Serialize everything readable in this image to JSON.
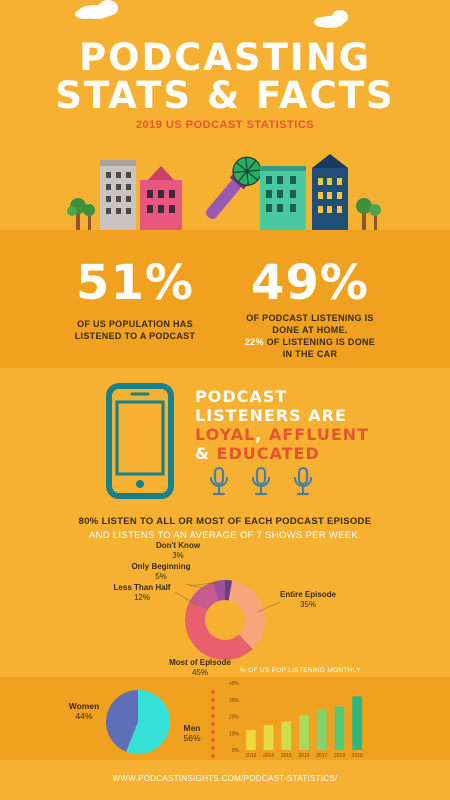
{
  "header": {
    "title_line1": "PODCASTING",
    "title_line2": "STATS & FACTS",
    "subtitle": "2019 US PODCAST STATISTICS"
  },
  "stats": {
    "stat1_value": "51%",
    "stat1_caption_line1": "OF US POPULATION HAS",
    "stat1_caption_line2": "LISTENED TO A PODCAST",
    "stat2_value": "49%",
    "stat2_caption_line1": "OF PODCAST LISTENING IS",
    "stat2_caption_line2": "DONE AT HOME.",
    "stat2_highlight": "22%",
    "stat2_caption_line3": " OF LISTENING IS DONE",
    "stat2_caption_line4": "IN THE CAR"
  },
  "listeners": {
    "line1": "PODCAST",
    "line2": "LISTENERS ARE",
    "loyal": "LOYAL",
    "comma": ",",
    "affluent": "AFFLUENT",
    "amp": "& ",
    "educated": "EDUCATED"
  },
  "episode_text": {
    "part1": "80% LISTEN TO ",
    "bold": "ALL OR MOST",
    "part2": " OF EACH PODCAST EPISODE",
    "line2": "AND LISTENS TO AN AVERAGE OF 7 SHOWS PER WEEK."
  },
  "chart_data": [
    {
      "type": "pie",
      "variant": "donut",
      "categories": [
        "Entire Episode",
        "Most of Episode",
        "Less Than Half",
        "Only Beginning",
        "Don't Know"
      ],
      "values": [
        35,
        45,
        12,
        5,
        3
      ],
      "value_labels": [
        "35%",
        "45%",
        "12%",
        "5%",
        "3%"
      ],
      "colors": [
        "#F7A57C",
        "#E8606E",
        "#C75A8E",
        "#9E4F9E",
        "#6A3C8C"
      ]
    },
    {
      "type": "pie",
      "categories": [
        "Women",
        "Men"
      ],
      "values": [
        44,
        56
      ],
      "value_labels": [
        "44%",
        "56%"
      ],
      "colors": [
        "#5E6FB5",
        "#35E0D6"
      ]
    },
    {
      "type": "bar",
      "title": "% OF US POP LISTENING MONTHLY",
      "categories": [
        "2013",
        "2014",
        "2015",
        "2016",
        "2017",
        "2018",
        "2019"
      ],
      "values": [
        12,
        15,
        17,
        21,
        24,
        26,
        32
      ],
      "ylim": [
        0,
        40
      ],
      "yticks": [
        "0%",
        "10%",
        "20%",
        "30%",
        "40%"
      ],
      "colors": [
        "#F2D83B",
        "#E7DA45",
        "#CFDC4E",
        "#A9DA5A",
        "#7ED36A",
        "#56C977",
        "#2EB87E"
      ]
    }
  ],
  "footer": {
    "url": "WWW.PODCASTINSIGHTS.COM/PODCAST-STATISTICS/"
  },
  "colors": {
    "background": "#F6B132",
    "band": "#F0A11F",
    "accent_red": "#E4572E",
    "phone": "#18808A"
  }
}
